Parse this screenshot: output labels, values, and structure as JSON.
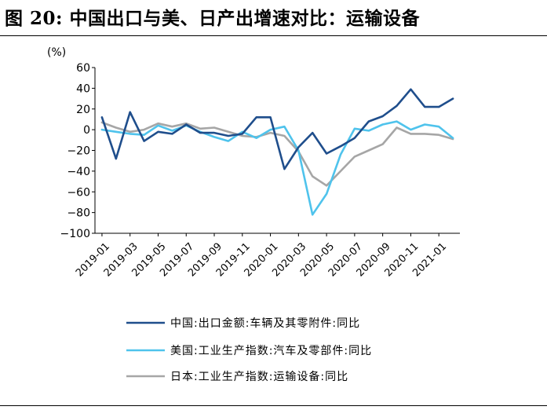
{
  "figure": {
    "title": "图 20: 中国出口与美、日产出增速对比：运输设备"
  },
  "chart_data": {
    "type": "line",
    "title": "图 20: 中国出口与美、日产出增速对比：运输设备",
    "ylabel": "(%)",
    "xlabel": "",
    "ylim": [
      -100,
      60
    ],
    "yticks": [
      "60",
      "40",
      "20",
      "0",
      "−20",
      "−40",
      "−60",
      "−80",
      "−100"
    ],
    "x_tick_labels": [
      "2019-01",
      "2019-03",
      "2019-05",
      "2019-07",
      "2019-09",
      "2019-11",
      "2020-01",
      "2020-03",
      "2020-05",
      "2020-07",
      "2020-09",
      "2020-11",
      "2021-01"
    ],
    "grid": false,
    "legend_position": "bottom",
    "series": [
      {
        "name": "中国:出口金额:车辆及其零附件:同比",
        "color": "#1f4e8c",
        "x": [
          "2019-01",
          "2019-02",
          "2019-03",
          "2019-04",
          "2019-05",
          "2019-06",
          "2019-07",
          "2019-08",
          "2019-09",
          "2019-10",
          "2019-11",
          "2019-12",
          "2020-01",
          "2020-02",
          "2020-03",
          "2020-04",
          "2020-05",
          "2020-06",
          "2020-07",
          "2020-08",
          "2020-09",
          "2020-10",
          "2020-11",
          "2020-12",
          "2021-01",
          "2021-02"
        ],
        "values": [
          12,
          -28,
          17,
          -11,
          -2,
          -4,
          5,
          -3,
          -3,
          -6,
          -4,
          12,
          12,
          -38,
          -17,
          -3,
          -23,
          -16,
          -8,
          8,
          13,
          23,
          39,
          22,
          22,
          30
        ]
      },
      {
        "name": "美国:工业生产指数:汽车及零部件:同比",
        "color": "#4fc3ec",
        "x": [
          "2019-01",
          "2019-02",
          "2019-03",
          "2019-04",
          "2019-05",
          "2019-06",
          "2019-07",
          "2019-08",
          "2019-09",
          "2019-10",
          "2019-11",
          "2019-12",
          "2020-01",
          "2020-02",
          "2020-03",
          "2020-04",
          "2020-05",
          "2020-06",
          "2020-07",
          "2020-08",
          "2020-09",
          "2020-10",
          "2020-11",
          "2020-12",
          "2021-01",
          "2021-02"
        ],
        "values": [
          0,
          -2,
          -4,
          -5,
          4,
          -1,
          4,
          -2,
          -7,
          -11,
          -2,
          -8,
          0,
          3,
          -20,
          -82,
          -62,
          -24,
          1,
          -1,
          5,
          8,
          0,
          5,
          3,
          -8
        ]
      },
      {
        "name": "日本:工业生产指数:运输设备:同比",
        "color": "#a6a6a6",
        "x": [
          "2019-01",
          "2019-02",
          "2019-03",
          "2019-04",
          "2019-05",
          "2019-06",
          "2019-07",
          "2019-08",
          "2019-09",
          "2019-10",
          "2019-11",
          "2019-12",
          "2020-01",
          "2020-02",
          "2020-03",
          "2020-04",
          "2020-05",
          "2020-06",
          "2020-07",
          "2020-08",
          "2020-09",
          "2020-10",
          "2020-11",
          "2020-12",
          "2021-01",
          "2021-02"
        ],
        "values": [
          7,
          2,
          -2,
          0,
          6,
          3,
          6,
          1,
          2,
          -2,
          -6,
          -7,
          -3,
          -6,
          -21,
          -45,
          -54,
          -40,
          -26,
          -20,
          -14,
          2,
          -4,
          -4,
          -5,
          -9
        ]
      }
    ]
  }
}
